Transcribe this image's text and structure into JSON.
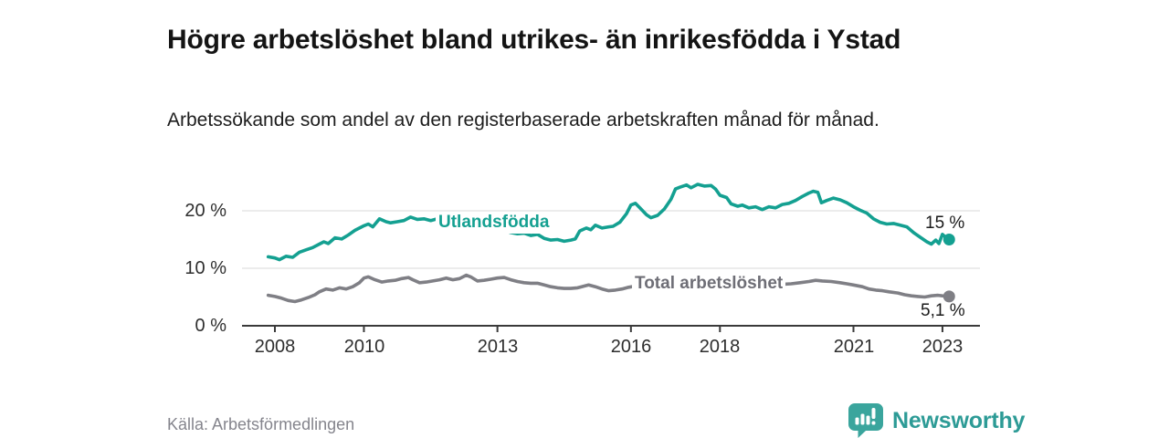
{
  "header": {
    "title": "Högre arbetslöshet bland utrikes- än inrikesfödda i Ystad",
    "subtitle": "Arbetssökande som andel av den registerbaserade arbetskraften månad för månad."
  },
  "footer": {
    "source": "Källa: Arbetsförmedlingen",
    "brand_name": "Newsworthy",
    "brand_text_color": "#2d9b96",
    "brand_icon_color": "#3aa59d"
  },
  "chart_data": {
    "type": "line",
    "title": "Högre arbetslöshet bland utrikes- än inrikesfödda i Ystad",
    "xlabel": "",
    "ylabel": "",
    "unit": "%",
    "grid": "horizontal",
    "xlim": [
      2007.6,
      2023.9
    ],
    "ylim": [
      0,
      26
    ],
    "x_tick_years": [
      2008,
      2010,
      2013,
      2016,
      2018,
      2021,
      2023
    ],
    "x_tick_labels": [
      "2008",
      "2010",
      "2013",
      "2016",
      "2018",
      "2021",
      "2023"
    ],
    "y_ticks": [
      {
        "value": 0,
        "label": "0 %"
      },
      {
        "value": 10,
        "label": "10 %"
      },
      {
        "value": 20,
        "label": "20 %"
      }
    ],
    "axis_color": "#3a3a3a",
    "gridline_color": "#d9d9d9",
    "series": [
      {
        "name": "Utlandsfödda",
        "color": "#14a091",
        "end_label": "15 %",
        "end_value": 15.0,
        "points": [
          [
            2007.85,
            12.0
          ],
          [
            2008.0,
            11.8
          ],
          [
            2008.1,
            11.5
          ],
          [
            2008.25,
            12.1
          ],
          [
            2008.4,
            11.9
          ],
          [
            2008.55,
            12.8
          ],
          [
            2008.7,
            13.2
          ],
          [
            2008.85,
            13.6
          ],
          [
            2009.0,
            14.2
          ],
          [
            2009.1,
            14.6
          ],
          [
            2009.2,
            14.3
          ],
          [
            2009.35,
            15.3
          ],
          [
            2009.5,
            15.1
          ],
          [
            2009.65,
            15.8
          ],
          [
            2009.8,
            16.6
          ],
          [
            2010.0,
            17.4
          ],
          [
            2010.1,
            17.7
          ],
          [
            2010.2,
            17.2
          ],
          [
            2010.35,
            18.6
          ],
          [
            2010.5,
            18.1
          ],
          [
            2010.6,
            17.9
          ],
          [
            2010.75,
            18.1
          ],
          [
            2010.9,
            18.3
          ],
          [
            2011.05,
            18.9
          ],
          [
            2011.2,
            18.5
          ],
          [
            2011.35,
            18.6
          ],
          [
            2011.5,
            18.3
          ],
          [
            2011.65,
            18.6
          ],
          [
            2011.8,
            18.7
          ],
          [
            2011.95,
            18.6
          ],
          [
            2012.1,
            18.5
          ],
          [
            2012.25,
            18.5
          ],
          [
            2012.4,
            18.3
          ],
          [
            2012.55,
            18.2
          ],
          [
            2012.7,
            17.9
          ],
          [
            2012.85,
            17.4
          ],
          [
            2013.0,
            17.0
          ],
          [
            2013.15,
            16.6
          ],
          [
            2013.3,
            16.2
          ],
          [
            2013.45,
            16.0
          ],
          [
            2013.6,
            16.1
          ],
          [
            2013.75,
            15.7
          ],
          [
            2013.9,
            15.9
          ],
          [
            2014.05,
            15.2
          ],
          [
            2014.2,
            14.9
          ],
          [
            2014.35,
            15.0
          ],
          [
            2014.5,
            14.7
          ],
          [
            2014.65,
            14.9
          ],
          [
            2014.75,
            15.1
          ],
          [
            2014.85,
            16.5
          ],
          [
            2015.0,
            17.0
          ],
          [
            2015.1,
            16.7
          ],
          [
            2015.2,
            17.5
          ],
          [
            2015.35,
            17.0
          ],
          [
            2015.5,
            17.2
          ],
          [
            2015.6,
            17.3
          ],
          [
            2015.75,
            18.0
          ],
          [
            2015.9,
            19.5
          ],
          [
            2016.0,
            21.0
          ],
          [
            2016.1,
            21.3
          ],
          [
            2016.2,
            20.5
          ],
          [
            2016.35,
            19.3
          ],
          [
            2016.45,
            18.8
          ],
          [
            2016.6,
            19.2
          ],
          [
            2016.75,
            20.3
          ],
          [
            2016.9,
            22.0
          ],
          [
            2017.0,
            23.8
          ],
          [
            2017.1,
            24.1
          ],
          [
            2017.25,
            24.5
          ],
          [
            2017.35,
            24.0
          ],
          [
            2017.5,
            24.6
          ],
          [
            2017.65,
            24.3
          ],
          [
            2017.8,
            24.4
          ],
          [
            2017.9,
            23.8
          ],
          [
            2018.0,
            22.7
          ],
          [
            2018.15,
            22.3
          ],
          [
            2018.25,
            21.2
          ],
          [
            2018.4,
            20.8
          ],
          [
            2018.5,
            21.0
          ],
          [
            2018.65,
            20.5
          ],
          [
            2018.8,
            20.7
          ],
          [
            2018.95,
            20.2
          ],
          [
            2019.1,
            20.7
          ],
          [
            2019.25,
            20.5
          ],
          [
            2019.4,
            21.1
          ],
          [
            2019.55,
            21.3
          ],
          [
            2019.7,
            21.8
          ],
          [
            2019.85,
            22.5
          ],
          [
            2020.0,
            23.1
          ],
          [
            2020.1,
            23.4
          ],
          [
            2020.2,
            23.2
          ],
          [
            2020.28,
            21.4
          ],
          [
            2020.4,
            21.8
          ],
          [
            2020.55,
            22.2
          ],
          [
            2020.7,
            21.9
          ],
          [
            2020.85,
            21.4
          ],
          [
            2021.0,
            20.7
          ],
          [
            2021.15,
            20.1
          ],
          [
            2021.3,
            19.6
          ],
          [
            2021.45,
            18.6
          ],
          [
            2021.6,
            18.0
          ],
          [
            2021.75,
            17.7
          ],
          [
            2021.9,
            17.8
          ],
          [
            2022.05,
            17.5
          ],
          [
            2022.2,
            17.2
          ],
          [
            2022.35,
            16.2
          ],
          [
            2022.5,
            15.4
          ],
          [
            2022.65,
            14.6
          ],
          [
            2022.75,
            14.2
          ],
          [
            2022.85,
            14.9
          ],
          [
            2022.92,
            14.3
          ],
          [
            2023.0,
            15.9
          ],
          [
            2023.07,
            15.4
          ],
          [
            2023.15,
            15.0
          ]
        ]
      },
      {
        "name": "Total arbetslöshet",
        "color": "#7f7f85",
        "end_label": "5,1 %",
        "end_value": 5.1,
        "points": [
          [
            2007.85,
            5.3
          ],
          [
            2008.0,
            5.1
          ],
          [
            2008.15,
            4.8
          ],
          [
            2008.3,
            4.4
          ],
          [
            2008.45,
            4.2
          ],
          [
            2008.6,
            4.5
          ],
          [
            2008.75,
            4.9
          ],
          [
            2008.9,
            5.4
          ],
          [
            2009.0,
            5.9
          ],
          [
            2009.15,
            6.4
          ],
          [
            2009.3,
            6.2
          ],
          [
            2009.45,
            6.6
          ],
          [
            2009.6,
            6.4
          ],
          [
            2009.75,
            6.8
          ],
          [
            2009.9,
            7.5
          ],
          [
            2010.0,
            8.3
          ],
          [
            2010.1,
            8.5
          ],
          [
            2010.25,
            8.0
          ],
          [
            2010.4,
            7.6
          ],
          [
            2010.55,
            7.8
          ],
          [
            2010.7,
            7.9
          ],
          [
            2010.85,
            8.2
          ],
          [
            2011.0,
            8.4
          ],
          [
            2011.1,
            8.0
          ],
          [
            2011.25,
            7.5
          ],
          [
            2011.4,
            7.6
          ],
          [
            2011.55,
            7.8
          ],
          [
            2011.7,
            8.0
          ],
          [
            2011.85,
            8.3
          ],
          [
            2012.0,
            8.0
          ],
          [
            2012.15,
            8.2
          ],
          [
            2012.3,
            8.8
          ],
          [
            2012.4,
            8.5
          ],
          [
            2012.55,
            7.8
          ],
          [
            2012.7,
            7.9
          ],
          [
            2012.85,
            8.1
          ],
          [
            2013.0,
            8.3
          ],
          [
            2013.15,
            8.4
          ],
          [
            2013.3,
            8.0
          ],
          [
            2013.45,
            7.7
          ],
          [
            2013.6,
            7.5
          ],
          [
            2013.75,
            7.4
          ],
          [
            2013.9,
            7.4
          ],
          [
            2014.05,
            7.1
          ],
          [
            2014.2,
            6.8
          ],
          [
            2014.35,
            6.6
          ],
          [
            2014.5,
            6.5
          ],
          [
            2014.65,
            6.5
          ],
          [
            2014.8,
            6.6
          ],
          [
            2014.95,
            6.9
          ],
          [
            2015.05,
            7.1
          ],
          [
            2015.2,
            6.8
          ],
          [
            2015.35,
            6.4
          ],
          [
            2015.5,
            6.1
          ],
          [
            2015.65,
            6.2
          ],
          [
            2015.8,
            6.4
          ],
          [
            2015.95,
            6.7
          ],
          [
            2016.1,
            6.9
          ],
          [
            2016.25,
            6.8
          ],
          [
            2016.4,
            6.6
          ],
          [
            2016.55,
            6.6
          ],
          [
            2016.7,
            6.7
          ],
          [
            2016.85,
            6.8
          ],
          [
            2017.0,
            7.0
          ],
          [
            2017.2,
            7.1
          ],
          [
            2017.4,
            7.3
          ],
          [
            2017.6,
            7.3
          ],
          [
            2017.8,
            7.2
          ],
          [
            2018.0,
            7.1
          ],
          [
            2018.2,
            7.0
          ],
          [
            2018.4,
            6.9
          ],
          [
            2018.6,
            6.8
          ],
          [
            2018.8,
            6.9
          ],
          [
            2019.0,
            7.0
          ],
          [
            2019.2,
            7.1
          ],
          [
            2019.4,
            7.2
          ],
          [
            2019.6,
            7.3
          ],
          [
            2019.8,
            7.5
          ],
          [
            2020.0,
            7.7
          ],
          [
            2020.15,
            7.9
          ],
          [
            2020.3,
            7.8
          ],
          [
            2020.5,
            7.7
          ],
          [
            2020.7,
            7.5
          ],
          [
            2020.85,
            7.3
          ],
          [
            2021.0,
            7.1
          ],
          [
            2021.2,
            6.8
          ],
          [
            2021.35,
            6.4
          ],
          [
            2021.5,
            6.2
          ],
          [
            2021.65,
            6.1
          ],
          [
            2021.8,
            5.9
          ],
          [
            2022.0,
            5.7
          ],
          [
            2022.15,
            5.4
          ],
          [
            2022.3,
            5.2
          ],
          [
            2022.45,
            5.1
          ],
          [
            2022.6,
            5.0
          ],
          [
            2022.75,
            5.2
          ],
          [
            2022.9,
            5.3
          ],
          [
            2023.0,
            5.2
          ],
          [
            2023.15,
            5.1
          ]
        ]
      }
    ]
  }
}
